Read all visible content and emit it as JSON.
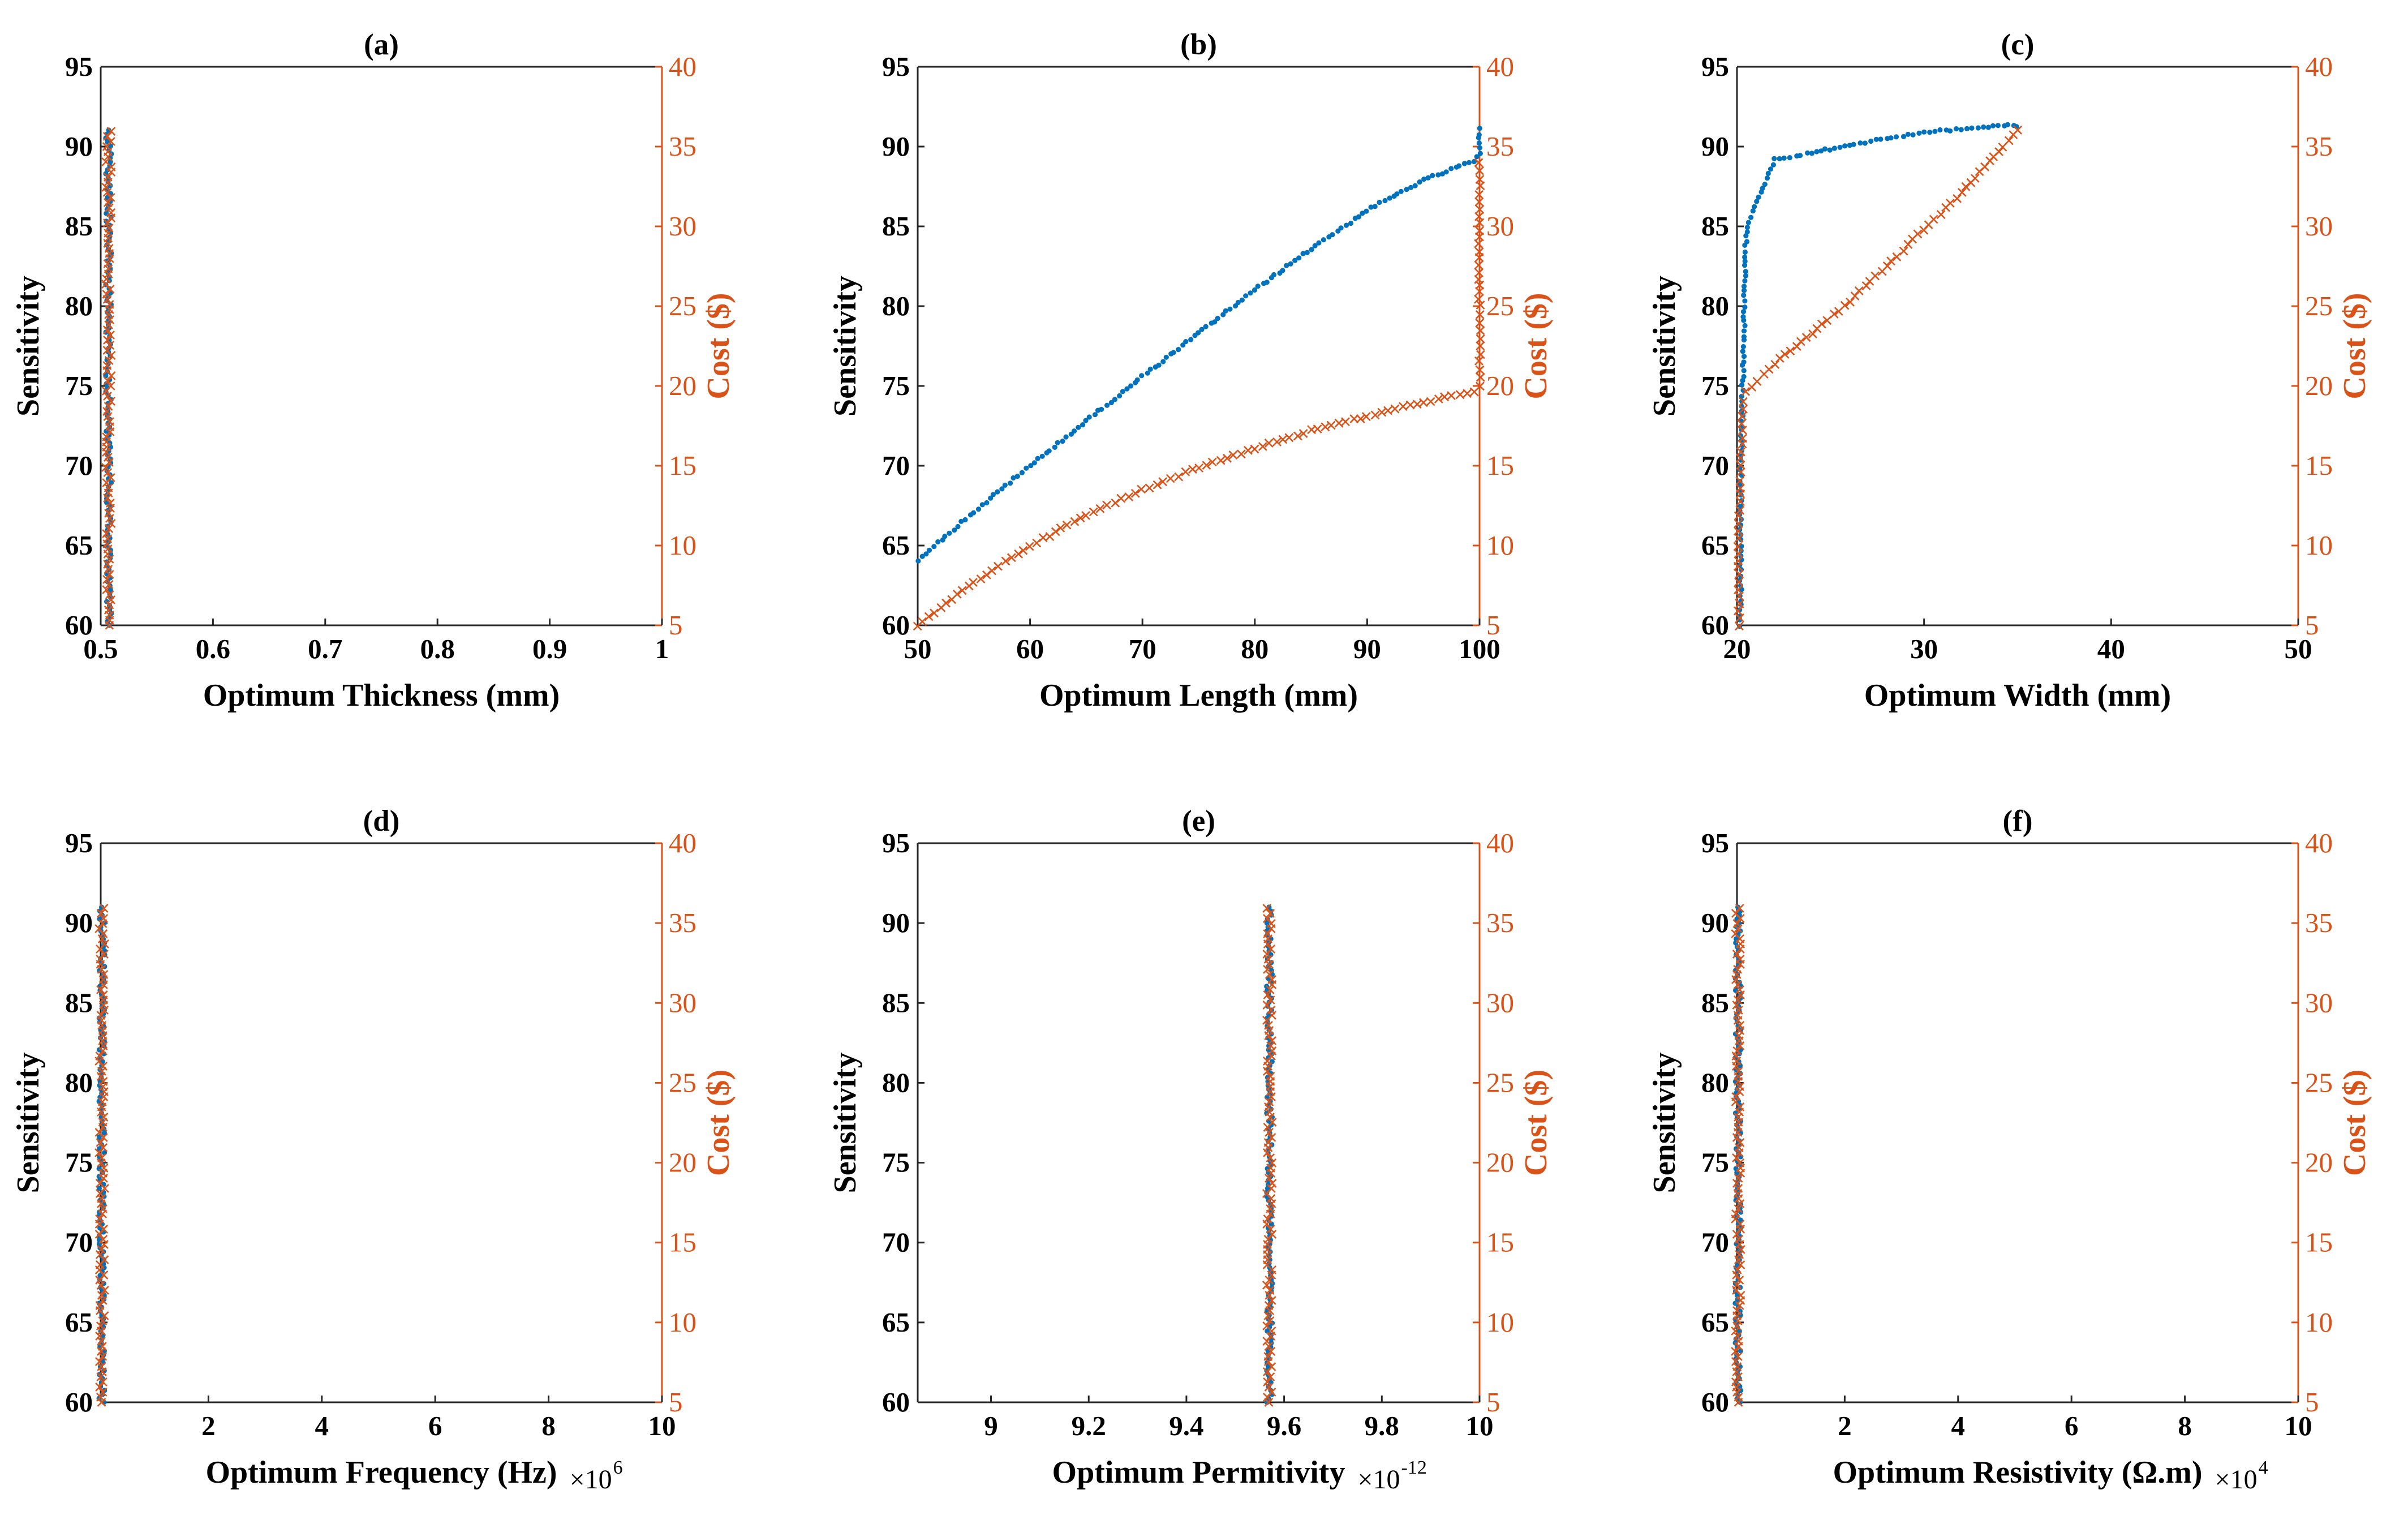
{
  "colors": {
    "sensitivity": "#0072BD",
    "cost": "#D95319",
    "axis": "#262626"
  },
  "chart_data": [
    {
      "id": "a",
      "title": "(a)",
      "type": "scatter",
      "xlabel": "Optimum Thickness (mm)",
      "ylabel": "Sensitivity",
      "y2label": "Cost ($)",
      "xlim": [
        0.5,
        1
      ],
      "ylim": [
        60,
        95
      ],
      "y2lim": [
        5,
        40
      ],
      "xticks": [
        0.5,
        0.6,
        0.7,
        0.8,
        0.9,
        1
      ],
      "xtick_labels": [
        "0.5",
        "0.6",
        "0.7",
        "0.8",
        "0.9",
        "1"
      ],
      "yticks": [
        60,
        65,
        70,
        75,
        80,
        85,
        90,
        95
      ],
      "ytick_labels": [
        "60",
        "65",
        "70",
        "75",
        "80",
        "85",
        "90",
        "95"
      ],
      "y2ticks": [
        5,
        10,
        15,
        20,
        25,
        30,
        35,
        40
      ],
      "y2tick_labels": [
        "5",
        "10",
        "15",
        "20",
        "25",
        "30",
        "35",
        "40"
      ],
      "series": [
        {
          "name": "Sensitivity",
          "axis": "left",
          "marker": "dot",
          "cluster_x": 0.507,
          "y_range": [
            60,
            91.2
          ]
        },
        {
          "name": "Cost",
          "axis": "right",
          "marker": "x",
          "cluster_x": 0.507,
          "y_range": [
            5,
            36
          ]
        }
      ]
    },
    {
      "id": "b",
      "title": "(b)",
      "type": "scatter",
      "xlabel": "Optimum Length (mm)",
      "ylabel": "Sensitivity",
      "y2label": "Cost ($)",
      "xlim": [
        50,
        100
      ],
      "ylim": [
        60,
        95
      ],
      "y2lim": [
        5,
        40
      ],
      "xticks": [
        50,
        60,
        70,
        80,
        90,
        100
      ],
      "xtick_labels": [
        "50",
        "60",
        "70",
        "80",
        "90",
        "100"
      ],
      "yticks": [
        60,
        65,
        70,
        75,
        80,
        85,
        90,
        95
      ],
      "ytick_labels": [
        "60",
        "65",
        "70",
        "75",
        "80",
        "85",
        "90",
        "95"
      ],
      "y2ticks": [
        5,
        10,
        15,
        20,
        25,
        30,
        35,
        40
      ],
      "y2tick_labels": [
        "5",
        "10",
        "15",
        "20",
        "25",
        "30",
        "35",
        "40"
      ],
      "series": [
        {
          "name": "Sensitivity",
          "axis": "left",
          "marker": "dot",
          "x": [
            50,
            55,
            60,
            65,
            70,
            75,
            80,
            85,
            90,
            95,
            99.5,
            100,
            100,
            100,
            100
          ],
          "y": [
            64.1,
            67.1,
            70,
            72.8,
            75.6,
            78.3,
            81,
            83.6,
            86,
            87.9,
            89.1,
            89.5,
            90.2,
            90.8,
            91.2
          ]
        },
        {
          "name": "Cost",
          "axis": "right",
          "marker": "x",
          "x": [
            50,
            55,
            60,
            65,
            70,
            75,
            80,
            85,
            90,
            95,
            99.5,
            100,
            100,
            100,
            100,
            100,
            100
          ],
          "y": [
            5,
            7.7,
            10,
            11.9,
            13.5,
            14.9,
            16.1,
            17.2,
            18.1,
            19,
            19.6,
            20,
            22.5,
            25,
            28,
            31.5,
            34
          ]
        }
      ]
    },
    {
      "id": "c",
      "title": "(c)",
      "type": "scatter",
      "xlabel": "Optimum Width (mm)",
      "ylabel": "Sensitivity",
      "y2label": "Cost ($)",
      "xlim": [
        20,
        50
      ],
      "ylim": [
        60,
        95
      ],
      "y2lim": [
        5,
        40
      ],
      "xticks": [
        20,
        30,
        40,
        50
      ],
      "xtick_labels": [
        "20",
        "30",
        "40",
        "50"
      ],
      "yticks": [
        60,
        65,
        70,
        75,
        80,
        85,
        90,
        95
      ],
      "ytick_labels": [
        "60",
        "65",
        "70",
        "75",
        "80",
        "85",
        "90",
        "95"
      ],
      "y2ticks": [
        5,
        10,
        15,
        20,
        25,
        30,
        35,
        40
      ],
      "y2tick_labels": [
        "5",
        "10",
        "15",
        "20",
        "25",
        "30",
        "35",
        "40"
      ],
      "series": [
        {
          "name": "Sensitivity",
          "axis": "left",
          "marker": "dot",
          "x": [
            20.2,
            20.2,
            20.2,
            20.3,
            20.4,
            20.5,
            22,
            24,
            26,
            28,
            30,
            32,
            34,
            35
          ],
          "y": [
            60,
            65,
            70,
            75,
            80,
            85,
            89.2,
            89.6,
            90.1,
            90.5,
            90.9,
            91.1,
            91.3,
            91.3
          ]
        },
        {
          "name": "Cost",
          "axis": "right",
          "marker": "x",
          "x": [
            20.1,
            20.1,
            20.2,
            20.3,
            20.5,
            22,
            24,
            26,
            28,
            30,
            32,
            34,
            35
          ],
          "y": [
            5,
            10,
            15,
            19,
            19.6,
            21.4,
            23.3,
            25.3,
            27.5,
            29.8,
            32.1,
            34.7,
            36
          ]
        }
      ]
    },
    {
      "id": "d",
      "title": "(d)",
      "type": "scatter",
      "xlabel": "Optimum Frequency (Hz)",
      "ylabel": "Sensitivity",
      "y2label": "Cost ($)",
      "x_multiplier": "×10",
      "x_multiplier_exp": "6",
      "xlim": [
        0.1,
        10
      ],
      "ylim": [
        60,
        95
      ],
      "y2lim": [
        5,
        40
      ],
      "xticks": [
        2,
        4,
        6,
        8,
        10
      ],
      "xtick_labels": [
        "2",
        "4",
        "6",
        "8",
        "10"
      ],
      "yticks": [
        60,
        65,
        70,
        75,
        80,
        85,
        90,
        95
      ],
      "ytick_labels": [
        "60",
        "65",
        "70",
        "75",
        "80",
        "85",
        "90",
        "95"
      ],
      "y2ticks": [
        5,
        10,
        15,
        20,
        25,
        30,
        35,
        40
      ],
      "y2tick_labels": [
        "5",
        "10",
        "15",
        "20",
        "25",
        "30",
        "35",
        "40"
      ],
      "series": [
        {
          "name": "Sensitivity",
          "axis": "left",
          "marker": "dot",
          "cluster_x": 0.12,
          "y_range": [
            60,
            91.2
          ]
        },
        {
          "name": "Cost",
          "axis": "right",
          "marker": "x",
          "cluster_x": 0.12,
          "y_range": [
            5,
            36
          ]
        }
      ]
    },
    {
      "id": "e",
      "title": "(e)",
      "type": "scatter",
      "xlabel": "Optimum Permitivity",
      "ylabel": "Sensitivity",
      "y2label": "Cost ($)",
      "x_multiplier": "×10",
      "x_multiplier_exp": "-12",
      "xlim": [
        8.85,
        10
      ],
      "ylim": [
        60,
        95
      ],
      "y2lim": [
        5,
        40
      ],
      "xticks": [
        9,
        9.2,
        9.4,
        9.6,
        9.8,
        10
      ],
      "xtick_labels": [
        "9",
        "9.2",
        "9.4",
        "9.6",
        "9.8",
        "10"
      ],
      "yticks": [
        60,
        65,
        70,
        75,
        80,
        85,
        90,
        95
      ],
      "ytick_labels": [
        "60",
        "65",
        "70",
        "75",
        "80",
        "85",
        "90",
        "95"
      ],
      "y2ticks": [
        5,
        10,
        15,
        20,
        25,
        30,
        35,
        40
      ],
      "y2tick_labels": [
        "5",
        "10",
        "15",
        "20",
        "25",
        "30",
        "35",
        "40"
      ],
      "series": [
        {
          "name": "Sensitivity",
          "axis": "left",
          "marker": "dot",
          "cluster_x": 9.57,
          "y_range": [
            60,
            91.2
          ]
        },
        {
          "name": "Cost",
          "axis": "right",
          "marker": "x",
          "cluster_x": 9.57,
          "y_range": [
            5,
            36
          ]
        }
      ]
    },
    {
      "id": "f",
      "title": "(f)",
      "type": "scatter",
      "xlabel": "Optimum Resistivity (Ω.m)",
      "ylabel": "Sensitivity",
      "y2label": "Cost ($)",
      "x_multiplier": "×10",
      "x_multiplier_exp": "4",
      "xlim": [
        0.1,
        10
      ],
      "ylim": [
        60,
        95
      ],
      "y2lim": [
        5,
        40
      ],
      "xticks": [
        2,
        4,
        6,
        8,
        10
      ],
      "xtick_labels": [
        "2",
        "4",
        "6",
        "8",
        "10"
      ],
      "yticks": [
        60,
        65,
        70,
        75,
        80,
        85,
        90,
        95
      ],
      "ytick_labels": [
        "60",
        "65",
        "70",
        "75",
        "80",
        "85",
        "90",
        "95"
      ],
      "y2ticks": [
        5,
        10,
        15,
        20,
        25,
        30,
        35,
        40
      ],
      "y2tick_labels": [
        "5",
        "10",
        "15",
        "20",
        "25",
        "30",
        "35",
        "40"
      ],
      "series": [
        {
          "name": "Sensitivity",
          "axis": "left",
          "marker": "dot",
          "cluster_x": 0.12,
          "y_range": [
            60,
            91.2
          ]
        },
        {
          "name": "Cost",
          "axis": "right",
          "marker": "x",
          "cluster_x": 0.12,
          "y_range": [
            5,
            36
          ]
        }
      ]
    }
  ]
}
